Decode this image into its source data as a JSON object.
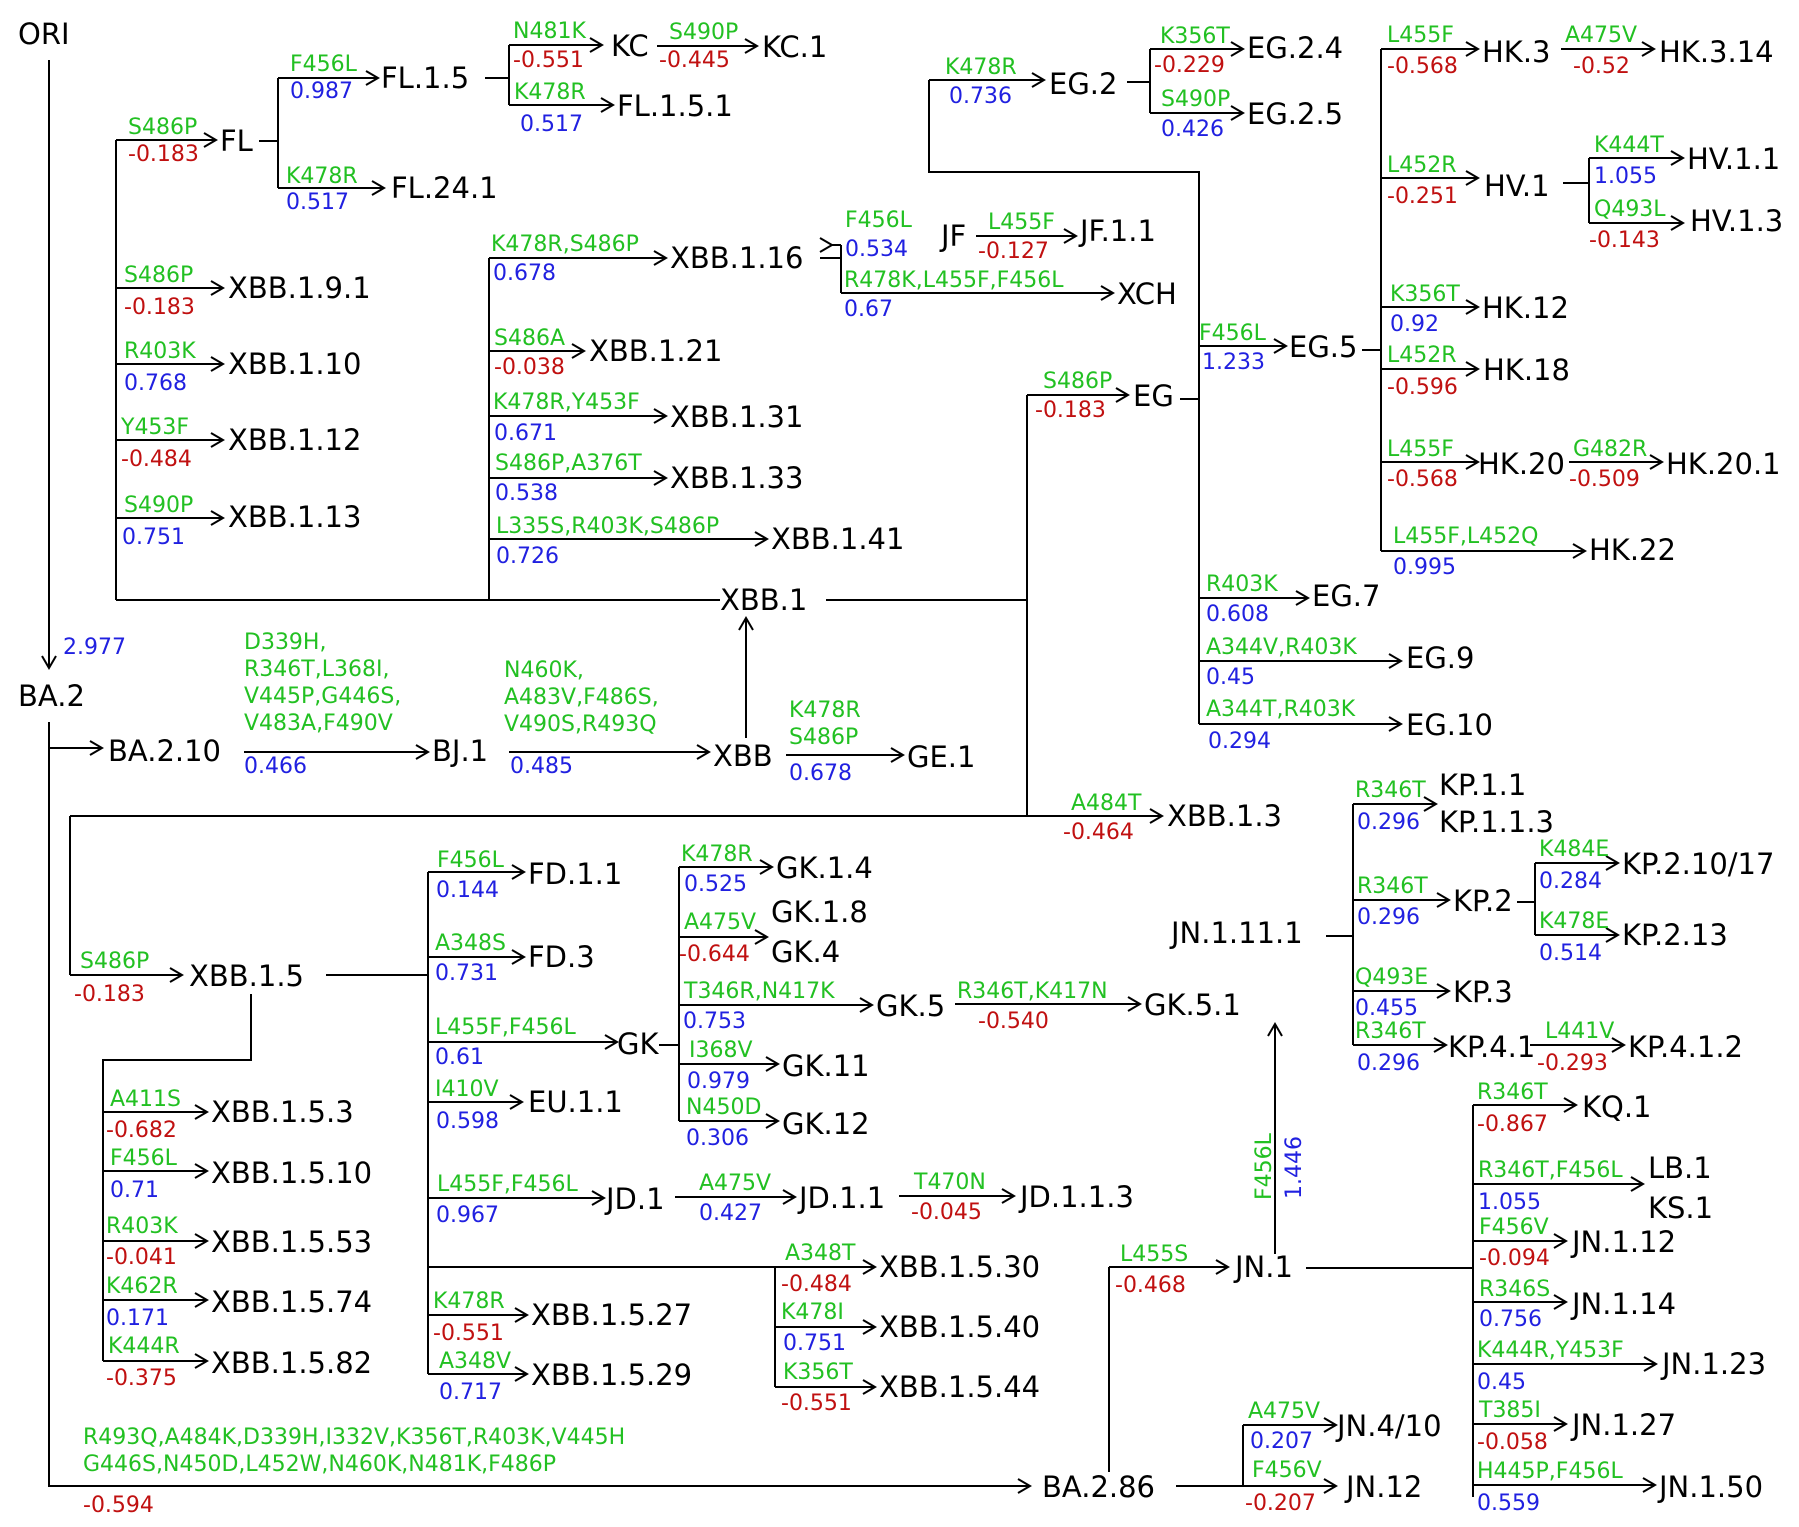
{
  "colors": {
    "line": "#000000",
    "mutation": "#22c022",
    "positive": "#2020e0",
    "negative": "#c01010",
    "node": "#000000"
  },
  "nodes": {
    "ORI": "ORI",
    "BA.2": "BA.2",
    "BA.2.10": "BA.2.10",
    "BJ.1": "BJ.1",
    "XBB": "XBB",
    "GE.1": "GE.1",
    "XBB.1": "XBB.1",
    "FL": "FL",
    "FL.1.5": "FL.1.5",
    "KC": "KC",
    "KC.1": "KC.1",
    "FL.1.5.1": "FL.1.5.1",
    "FL.24.1": "FL.24.1",
    "XBB.1.9.1": "XBB.1.9.1",
    "XBB.1.10": "XBB.1.10",
    "XBB.1.12": "XBB.1.12",
    "XBB.1.13": "XBB.1.13",
    "XBB.1.16": "XBB.1.16",
    "JF": "JF",
    "JF.1.1": "JF.1.1",
    "XCH": "XCH",
    "XBB.1.21": "XBB.1.21",
    "XBB.1.31": "XBB.1.31",
    "XBB.1.33": "XBB.1.33",
    "XBB.1.41": "XBB.1.41",
    "EG": "EG",
    "EG.2": "EG.2",
    "EG.2.4": "EG.2.4",
    "EG.2.5": "EG.2.5",
    "EG.5": "EG.5",
    "HK.3": "HK.3",
    "HK.3.14": "HK.3.14",
    "HV.1": "HV.1",
    "HV.1.1": "HV.1.1",
    "HV.1.3": "HV.1.3",
    "HK.12": "HK.12",
    "HK.18": "HK.18",
    "HK.20": "HK.20",
    "HK.20.1": "HK.20.1",
    "HK.22": "HK.22",
    "EG.7": "EG.7",
    "EG.9": "EG.9",
    "EG.10": "EG.10",
    "XBB.1.3": "XBB.1.3",
    "XBB.1.5": "XBB.1.5",
    "XBB.1.5.3": "XBB.1.5.3",
    "XBB.1.5.10": "XBB.1.5.10",
    "XBB.1.5.53": "XBB.1.5.53",
    "XBB.1.5.74": "XBB.1.5.74",
    "XBB.1.5.82": "XBB.1.5.82",
    "FD.1.1": "FD.1.1",
    "FD.3": "FD.3",
    "GK": "GK",
    "GK.1.4": "GK.1.4",
    "GK.1.8": "GK.1.8",
    "GK.4": "GK.4",
    "GK.5": "GK.5",
    "GK.5.1": "GK.5.1",
    "GK.11": "GK.11",
    "GK.12": "GK.12",
    "EU.1.1": "EU.1.1",
    "JD.1": "JD.1",
    "JD.1.1": "JD.1.1",
    "JD.1.1.3": "JD.1.1.3",
    "XBB.1.5.30": "XBB.1.5.30",
    "XBB.1.5.40": "XBB.1.5.40",
    "XBB.1.5.44": "XBB.1.5.44",
    "XBB.1.5.27": "XBB.1.5.27",
    "XBB.1.5.29": "XBB.1.5.29",
    "BA.2.86": "BA.2.86",
    "JN.1": "JN.1",
    "JN.1.11.1": "JN.1.11.1",
    "KP.1.1": "KP.1.1",
    "KP.1.1.3": "KP.1.1.3",
    "KP.2": "KP.2",
    "KP.2.10/17": "KP.2.10/17",
    "KP.2.13": "KP.2.13",
    "KP.3": "KP.3",
    "KP.4.1": "KP.4.1",
    "KP.4.1.2": "KP.4.1.2",
    "KQ.1": "KQ.1",
    "LB.1": "LB.1",
    "KS.1": "KS.1",
    "JN.1.12": "JN.1.12",
    "JN.1.14": "JN.1.14",
    "JN.1.23": "JN.1.23",
    "JN.1.27": "JN.1.27",
    "JN.1.50": "JN.1.50",
    "JN.4/10": "JN.4/10",
    "JN.12": "JN.12"
  },
  "edges": [
    {
      "id": "ORI-BA.2",
      "parent": "ORI",
      "child": "BA.2",
      "mutations": [],
      "score": "2.977",
      "sign": "positive"
    },
    {
      "id": "BA.2-BA.2.10",
      "parent": "BA.2",
      "child": "BA.2.10",
      "mutations": [],
      "score": "",
      "sign": ""
    },
    {
      "id": "BA.2.10-BJ.1",
      "parent": "BA.2.10",
      "child": "BJ.1",
      "mutations": [
        "D339H,",
        "R346T,L368I,",
        "V445P,G446S,",
        "V483A,F490V"
      ],
      "score": "0.466",
      "sign": "positive"
    },
    {
      "id": "BJ.1-XBB",
      "parent": "BJ.1",
      "child": "XBB",
      "mutations": [
        "N460K,",
        "A483V,F486S,",
        "V490S,R493Q"
      ],
      "score": "0.485",
      "sign": "positive"
    },
    {
      "id": "XBB-GE.1",
      "parent": "XBB",
      "child": "GE.1",
      "mutations": [
        "K478R",
        "S486P"
      ],
      "score": "0.678",
      "sign": "positive"
    },
    {
      "id": "XBB-XBB.1",
      "parent": "XBB",
      "child": "XBB.1",
      "mutations": [],
      "score": "",
      "sign": ""
    },
    {
      "id": "XBB.1-FL",
      "parent": "XBB.1",
      "child": "FL",
      "mutations": [
        "S486P"
      ],
      "score": "-0.183",
      "sign": "negative"
    },
    {
      "id": "FL-FL.1.5",
      "parent": "FL",
      "child": "FL.1.5",
      "mutations": [
        "F456L"
      ],
      "score": "0.987",
      "sign": "positive"
    },
    {
      "id": "FL.1.5-KC",
      "parent": "FL.1.5",
      "child": "KC",
      "mutations": [
        "N481K"
      ],
      "score": "-0.551",
      "sign": "negative"
    },
    {
      "id": "KC-KC.1",
      "parent": "KC",
      "child": "KC.1",
      "mutations": [
        "S490P"
      ],
      "score": "-0.445",
      "sign": "negative"
    },
    {
      "id": "FL.1.5-FL.1.5.1",
      "parent": "FL.1.5",
      "child": "FL.1.5.1",
      "mutations": [
        "K478R"
      ],
      "score": "0.517",
      "sign": "positive"
    },
    {
      "id": "FL-FL.24.1",
      "parent": "FL",
      "child": "FL.24.1",
      "mutations": [
        "K478R"
      ],
      "score": "0.517",
      "sign": "positive"
    },
    {
      "id": "XBB.1-XBB.1.9.1",
      "parent": "XBB.1",
      "child": "XBB.1.9.1",
      "mutations": [
        "S486P"
      ],
      "score": "-0.183",
      "sign": "negative"
    },
    {
      "id": "XBB.1-XBB.1.10",
      "parent": "XBB.1",
      "child": "XBB.1.10",
      "mutations": [
        "R403K"
      ],
      "score": "0.768",
      "sign": "positive"
    },
    {
      "id": "XBB.1-XBB.1.12",
      "parent": "XBB.1",
      "child": "XBB.1.12",
      "mutations": [
        "Y453F"
      ],
      "score": "-0.484",
      "sign": "negative"
    },
    {
      "id": "XBB.1-XBB.1.13",
      "parent": "XBB.1",
      "child": "XBB.1.13",
      "mutations": [
        "S490P"
      ],
      "score": "0.751",
      "sign": "positive"
    },
    {
      "id": "XBB.1-XBB.1.16",
      "parent": "XBB.1",
      "child": "XBB.1.16",
      "mutations": [
        "K478R,S486P"
      ],
      "score": "0.678",
      "sign": "positive"
    },
    {
      "id": "XBB.1.16-JF",
      "parent": "XBB.1.16",
      "child": "JF",
      "mutations": [
        "F456L"
      ],
      "score": "0.534",
      "sign": "positive"
    },
    {
      "id": "JF-JF.1.1",
      "parent": "JF",
      "child": "JF.1.1",
      "mutations": [
        "L455F"
      ],
      "score": "-0.127",
      "sign": "negative"
    },
    {
      "id": "XBB.1.16-XCH",
      "parent": "XBB.1.16",
      "child": "XCH",
      "mutations": [
        "R478K,L455F,F456L"
      ],
      "score": "0.67",
      "sign": "positive"
    },
    {
      "id": "XBB.1-XBB.1.21",
      "parent": "XBB.1",
      "child": "XBB.1.21",
      "mutations": [
        "S486A"
      ],
      "score": "-0.038",
      "sign": "negative"
    },
    {
      "id": "XBB.1-XBB.1.31",
      "parent": "XBB.1",
      "child": "XBB.1.31",
      "mutations": [
        "K478R,Y453F"
      ],
      "score": "0.671",
      "sign": "positive"
    },
    {
      "id": "XBB.1-XBB.1.33",
      "parent": "XBB.1",
      "child": "XBB.1.33",
      "mutations": [
        "S486P,A376T"
      ],
      "score": "0.538",
      "sign": "positive"
    },
    {
      "id": "XBB.1-XBB.1.41",
      "parent": "XBB.1",
      "child": "XBB.1.41",
      "mutations": [
        "L335S,R403K,S486P"
      ],
      "score": "0.726",
      "sign": "positive"
    },
    {
      "id": "XBB.1-EG",
      "parent": "XBB.1",
      "child": "EG",
      "mutations": [
        "S486P"
      ],
      "score": "-0.183",
      "sign": "negative"
    },
    {
      "id": "EG-EG.2",
      "parent": "EG",
      "child": "EG.2",
      "mutations": [
        "K478R"
      ],
      "score": "0.736",
      "sign": "positive"
    },
    {
      "id": "EG.2-EG.2.4",
      "parent": "EG.2",
      "child": "EG.2.4",
      "mutations": [
        "K356T"
      ],
      "score": "-0.229",
      "sign": "negative"
    },
    {
      "id": "EG.2-EG.2.5",
      "parent": "EG.2",
      "child": "EG.2.5",
      "mutations": [
        "S490P"
      ],
      "score": "0.426",
      "sign": "positive"
    },
    {
      "id": "EG-EG.5",
      "parent": "EG",
      "child": "EG.5",
      "mutations": [
        "F456L"
      ],
      "score": "1.233",
      "sign": "positive"
    },
    {
      "id": "EG.5-HK.3",
      "parent": "EG.5",
      "child": "HK.3",
      "mutations": [
        "L455F"
      ],
      "score": "-0.568",
      "sign": "negative"
    },
    {
      "id": "HK.3-HK.3.14",
      "parent": "HK.3",
      "child": "HK.3.14",
      "mutations": [
        "A475V"
      ],
      "score": "-0.52",
      "sign": "negative"
    },
    {
      "id": "EG.5-HV.1",
      "parent": "EG.5",
      "child": "HV.1",
      "mutations": [
        "L452R"
      ],
      "score": "-0.251",
      "sign": "negative"
    },
    {
      "id": "HV.1-HV.1.1",
      "parent": "HV.1",
      "child": "HV.1.1",
      "mutations": [
        "K444T"
      ],
      "score": "1.055",
      "sign": "positive"
    },
    {
      "id": "HV.1-HV.1.3",
      "parent": "HV.1",
      "child": "HV.1.3",
      "mutations": [
        "Q493L"
      ],
      "score": "-0.143",
      "sign": "negative"
    },
    {
      "id": "EG.5-HK.12",
      "parent": "EG.5",
      "child": "HK.12",
      "mutations": [
        "K356T"
      ],
      "score": "0.92",
      "sign": "positive"
    },
    {
      "id": "EG.5-HK.18",
      "parent": "EG.5",
      "child": "HK.18",
      "mutations": [
        "L452R"
      ],
      "score": "-0.596",
      "sign": "negative"
    },
    {
      "id": "EG.5-HK.20",
      "parent": "EG.5",
      "child": "HK.20",
      "mutations": [
        "L455F"
      ],
      "score": "-0.568",
      "sign": "negative"
    },
    {
      "id": "HK.20-HK.20.1",
      "parent": "HK.20",
      "child": "HK.20.1",
      "mutations": [
        "G482R"
      ],
      "score": "-0.509",
      "sign": "negative"
    },
    {
      "id": "EG.5-HK.22",
      "parent": "EG.5",
      "child": "HK.22",
      "mutations": [
        "L455F,L452Q"
      ],
      "score": "0.995",
      "sign": "positive"
    },
    {
      "id": "EG-EG.7",
      "parent": "EG",
      "child": "EG.7",
      "mutations": [
        "R403K"
      ],
      "score": "0.608",
      "sign": "positive"
    },
    {
      "id": "EG-EG.9",
      "parent": "EG",
      "child": "EG.9",
      "mutations": [
        "A344V,R403K"
      ],
      "score": "0.45",
      "sign": "positive"
    },
    {
      "id": "EG-EG.10",
      "parent": "EG",
      "child": "EG.10",
      "mutations": [
        "A344T,R403K"
      ],
      "score": "0.294",
      "sign": "positive"
    },
    {
      "id": "XBB.1-XBB.1.3",
      "parent": "XBB.1",
      "child": "XBB.1.3",
      "mutations": [
        "A484T"
      ],
      "score": "-0.464",
      "sign": "negative"
    },
    {
      "id": "XBB.1-XBB.1.5",
      "parent": "XBB.1",
      "child": "XBB.1.5",
      "mutations": [
        "S486P"
      ],
      "score": "-0.183",
      "sign": "negative"
    },
    {
      "id": "XBB.1.5-XBB.1.5.3",
      "parent": "XBB.1.5",
      "child": "XBB.1.5.3",
      "mutations": [
        "A411S"
      ],
      "score": "-0.682",
      "sign": "negative"
    },
    {
      "id": "XBB.1.5-XBB.1.5.10",
      "parent": "XBB.1.5",
      "child": "XBB.1.5.10",
      "mutations": [
        "F456L"
      ],
      "score": "0.71",
      "sign": "positive"
    },
    {
      "id": "XBB.1.5-XBB.1.5.53",
      "parent": "XBB.1.5",
      "child": "XBB.1.5.53",
      "mutations": [
        "R403K"
      ],
      "score": "-0.041",
      "sign": "negative"
    },
    {
      "id": "XBB.1.5-XBB.1.5.74",
      "parent": "XBB.1.5",
      "child": "XBB.1.5.74",
      "mutations": [
        "K462R"
      ],
      "score": "0.171",
      "sign": "positive"
    },
    {
      "id": "XBB.1.5-XBB.1.5.82",
      "parent": "XBB.1.5",
      "child": "XBB.1.5.82",
      "mutations": [
        "K444R"
      ],
      "score": "-0.375",
      "sign": "negative"
    },
    {
      "id": "XBB.1.5-FD.1.1",
      "parent": "XBB.1.5",
      "child": "FD.1.1",
      "mutations": [
        "F456L"
      ],
      "score": "0.144",
      "sign": "positive"
    },
    {
      "id": "XBB.1.5-FD.3",
      "parent": "XBB.1.5",
      "child": "FD.3",
      "mutations": [
        "A348S"
      ],
      "score": "0.731",
      "sign": "positive"
    },
    {
      "id": "XBB.1.5-GK",
      "parent": "XBB.1.5",
      "child": "GK",
      "mutations": [
        "L455F,F456L"
      ],
      "score": "0.61",
      "sign": "positive"
    },
    {
      "id": "GK-GK.1.4",
      "parent": "GK",
      "child": "GK.1.4",
      "mutations": [
        "K478R"
      ],
      "score": "0.525",
      "sign": "positive"
    },
    {
      "id": "GK-GK.1.8",
      "parent": "GK",
      "child": "GK.1.8",
      "mutations": [
        "A475V"
      ],
      "score": "-0.644",
      "sign": "negative"
    },
    {
      "id": "GK-GK.5",
      "parent": "GK",
      "child": "GK.5",
      "mutations": [
        "T346R,N417K"
      ],
      "score": "0.753",
      "sign": "positive"
    },
    {
      "id": "GK.5-GK.5.1",
      "parent": "GK.5",
      "child": "GK.5.1",
      "mutations": [
        "R346T,K417N"
      ],
      "score": "-0.540",
      "sign": "negative"
    },
    {
      "id": "GK-GK.11",
      "parent": "GK",
      "child": "GK.11",
      "mutations": [
        "I368V"
      ],
      "score": "0.979",
      "sign": "positive"
    },
    {
      "id": "GK-GK.12",
      "parent": "GK",
      "child": "GK.12",
      "mutations": [
        "N450D"
      ],
      "score": "0.306",
      "sign": "positive"
    },
    {
      "id": "XBB.1.5-EU.1.1",
      "parent": "XBB.1.5",
      "child": "EU.1.1",
      "mutations": [
        "I410V"
      ],
      "score": "0.598",
      "sign": "positive"
    },
    {
      "id": "XBB.1.5-JD.1",
      "parent": "XBB.1.5",
      "child": "JD.1",
      "mutations": [
        "L455F,F456L"
      ],
      "score": "0.967",
      "sign": "positive"
    },
    {
      "id": "JD.1-JD.1.1",
      "parent": "JD.1",
      "child": "JD.1.1",
      "mutations": [
        "A475V"
      ],
      "score": "0.427",
      "sign": "positive"
    },
    {
      "id": "JD.1.1-JD.1.1.3",
      "parent": "JD.1.1",
      "child": "JD.1.1.3",
      "mutations": [
        "T470N"
      ],
      "score": "-0.045",
      "sign": "negative"
    },
    {
      "id": "XBB.1.5-XBB.1.5.30",
      "parent": "XBB.1.5",
      "child": "XBB.1.5.30",
      "mutations": [
        "A348T"
      ],
      "score": "-0.484",
      "sign": "negative"
    },
    {
      "id": "XBB.1.5-XBB.1.5.40",
      "parent": "XBB.1.5",
      "child": "XBB.1.5.40",
      "mutations": [
        "K478I"
      ],
      "score": "0.751",
      "sign": "positive"
    },
    {
      "id": "XBB.1.5-XBB.1.5.44",
      "parent": "XBB.1.5",
      "child": "XBB.1.5.44",
      "mutations": [
        "K356T"
      ],
      "score": "-0.551",
      "sign": "negative"
    },
    {
      "id": "XBB.1.5-XBB.1.5.27",
      "parent": "XBB.1.5",
      "child": "XBB.1.5.27",
      "mutations": [
        "K478R"
      ],
      "score": "-0.551",
      "sign": "negative"
    },
    {
      "id": "XBB.1.5-XBB.1.5.29",
      "parent": "XBB.1.5",
      "child": "XBB.1.5.29",
      "mutations": [
        "A348V"
      ],
      "score": "0.717",
      "sign": "positive"
    },
    {
      "id": "BA.2-BA.2.86",
      "parent": "BA.2",
      "child": "BA.2.86",
      "mutations": [
        "R493Q,A484K,D339H,I332V,K356T,R403K,V445H",
        "G446S,N450D,L452W,N460K,N481K,F486P"
      ],
      "score": "-0.594",
      "sign": "negative"
    },
    {
      "id": "BA.2.86-JN.1",
      "parent": "BA.2.86",
      "child": "JN.1",
      "mutations": [
        "L455S"
      ],
      "score": "-0.468",
      "sign": "negative"
    },
    {
      "id": "JN.1-JN.1.11.1",
      "parent": "JN.1",
      "child": "JN.1.11.1",
      "mutations": [
        "F456L"
      ],
      "score": "1.446",
      "sign": "positive"
    },
    {
      "id": "JN.1.11.1-KP.1.1",
      "parent": "JN.1.11.1",
      "child": "KP.1.1",
      "mutations": [
        "R346T"
      ],
      "score": "0.296",
      "sign": "positive"
    },
    {
      "id": "JN.1.11.1-KP.2",
      "parent": "JN.1.11.1",
      "child": "KP.2",
      "mutations": [
        "R346T"
      ],
      "score": "0.296",
      "sign": "positive"
    },
    {
      "id": "KP.2-KP.2.10/17",
      "parent": "KP.2",
      "child": "KP.2.10/17",
      "mutations": [
        "K484E"
      ],
      "score": "0.284",
      "sign": "positive"
    },
    {
      "id": "KP.2-KP.2.13",
      "parent": "KP.2",
      "child": "KP.2.13",
      "mutations": [
        "K478E"
      ],
      "score": "0.514",
      "sign": "positive"
    },
    {
      "id": "JN.1.11.1-KP.3",
      "parent": "JN.1.11.1",
      "child": "KP.3",
      "mutations": [
        "Q493E"
      ],
      "score": "0.455",
      "sign": "positive"
    },
    {
      "id": "JN.1.11.1-KP.4.1",
      "parent": "JN.1.11.1",
      "child": "KP.4.1",
      "mutations": [
        "R346T"
      ],
      "score": "0.296",
      "sign": "positive"
    },
    {
      "id": "KP.4.1-KP.4.1.2",
      "parent": "KP.4.1",
      "child": "KP.4.1.2",
      "mutations": [
        "L441V"
      ],
      "score": "-0.293",
      "sign": "negative"
    },
    {
      "id": "JN.1-KQ.1",
      "parent": "JN.1",
      "child": "KQ.1",
      "mutations": [
        "R346T"
      ],
      "score": "-0.867",
      "sign": "negative"
    },
    {
      "id": "JN.1-LB.1",
      "parent": "JN.1",
      "child": "LB.1",
      "mutations": [
        "R346T,F456L"
      ],
      "score": "1.055",
      "sign": "positive"
    },
    {
      "id": "JN.1-JN.1.12",
      "parent": "JN.1",
      "child": "JN.1.12",
      "mutations": [
        "F456V"
      ],
      "score": "-0.094",
      "sign": "negative"
    },
    {
      "id": "JN.1-JN.1.14",
      "parent": "JN.1",
      "child": "JN.1.14",
      "mutations": [
        "R346S"
      ],
      "score": "0.756",
      "sign": "positive"
    },
    {
      "id": "JN.1-JN.1.23",
      "parent": "JN.1",
      "child": "JN.1.23",
      "mutations": [
        "K444R,Y453F"
      ],
      "score": "0.45",
      "sign": "positive"
    },
    {
      "id": "JN.1-JN.1.27",
      "parent": "JN.1",
      "child": "JN.1.27",
      "mutations": [
        "T385I"
      ],
      "score": "-0.058",
      "sign": "negative"
    },
    {
      "id": "JN.1-JN.1.50",
      "parent": "JN.1",
      "child": "JN.1.50",
      "mutations": [
        "H445P,F456L"
      ],
      "score": "0.559",
      "sign": "positive"
    },
    {
      "id": "BA.2.86-JN.4/10",
      "parent": "BA.2.86",
      "child": "JN.4/10",
      "mutations": [
        "A475V"
      ],
      "score": "0.207",
      "sign": "positive"
    },
    {
      "id": "BA.2.86-JN.12",
      "parent": "BA.2.86",
      "child": "JN.12",
      "mutations": [
        "F456V"
      ],
      "score": "-0.207",
      "sign": "negative"
    }
  ]
}
